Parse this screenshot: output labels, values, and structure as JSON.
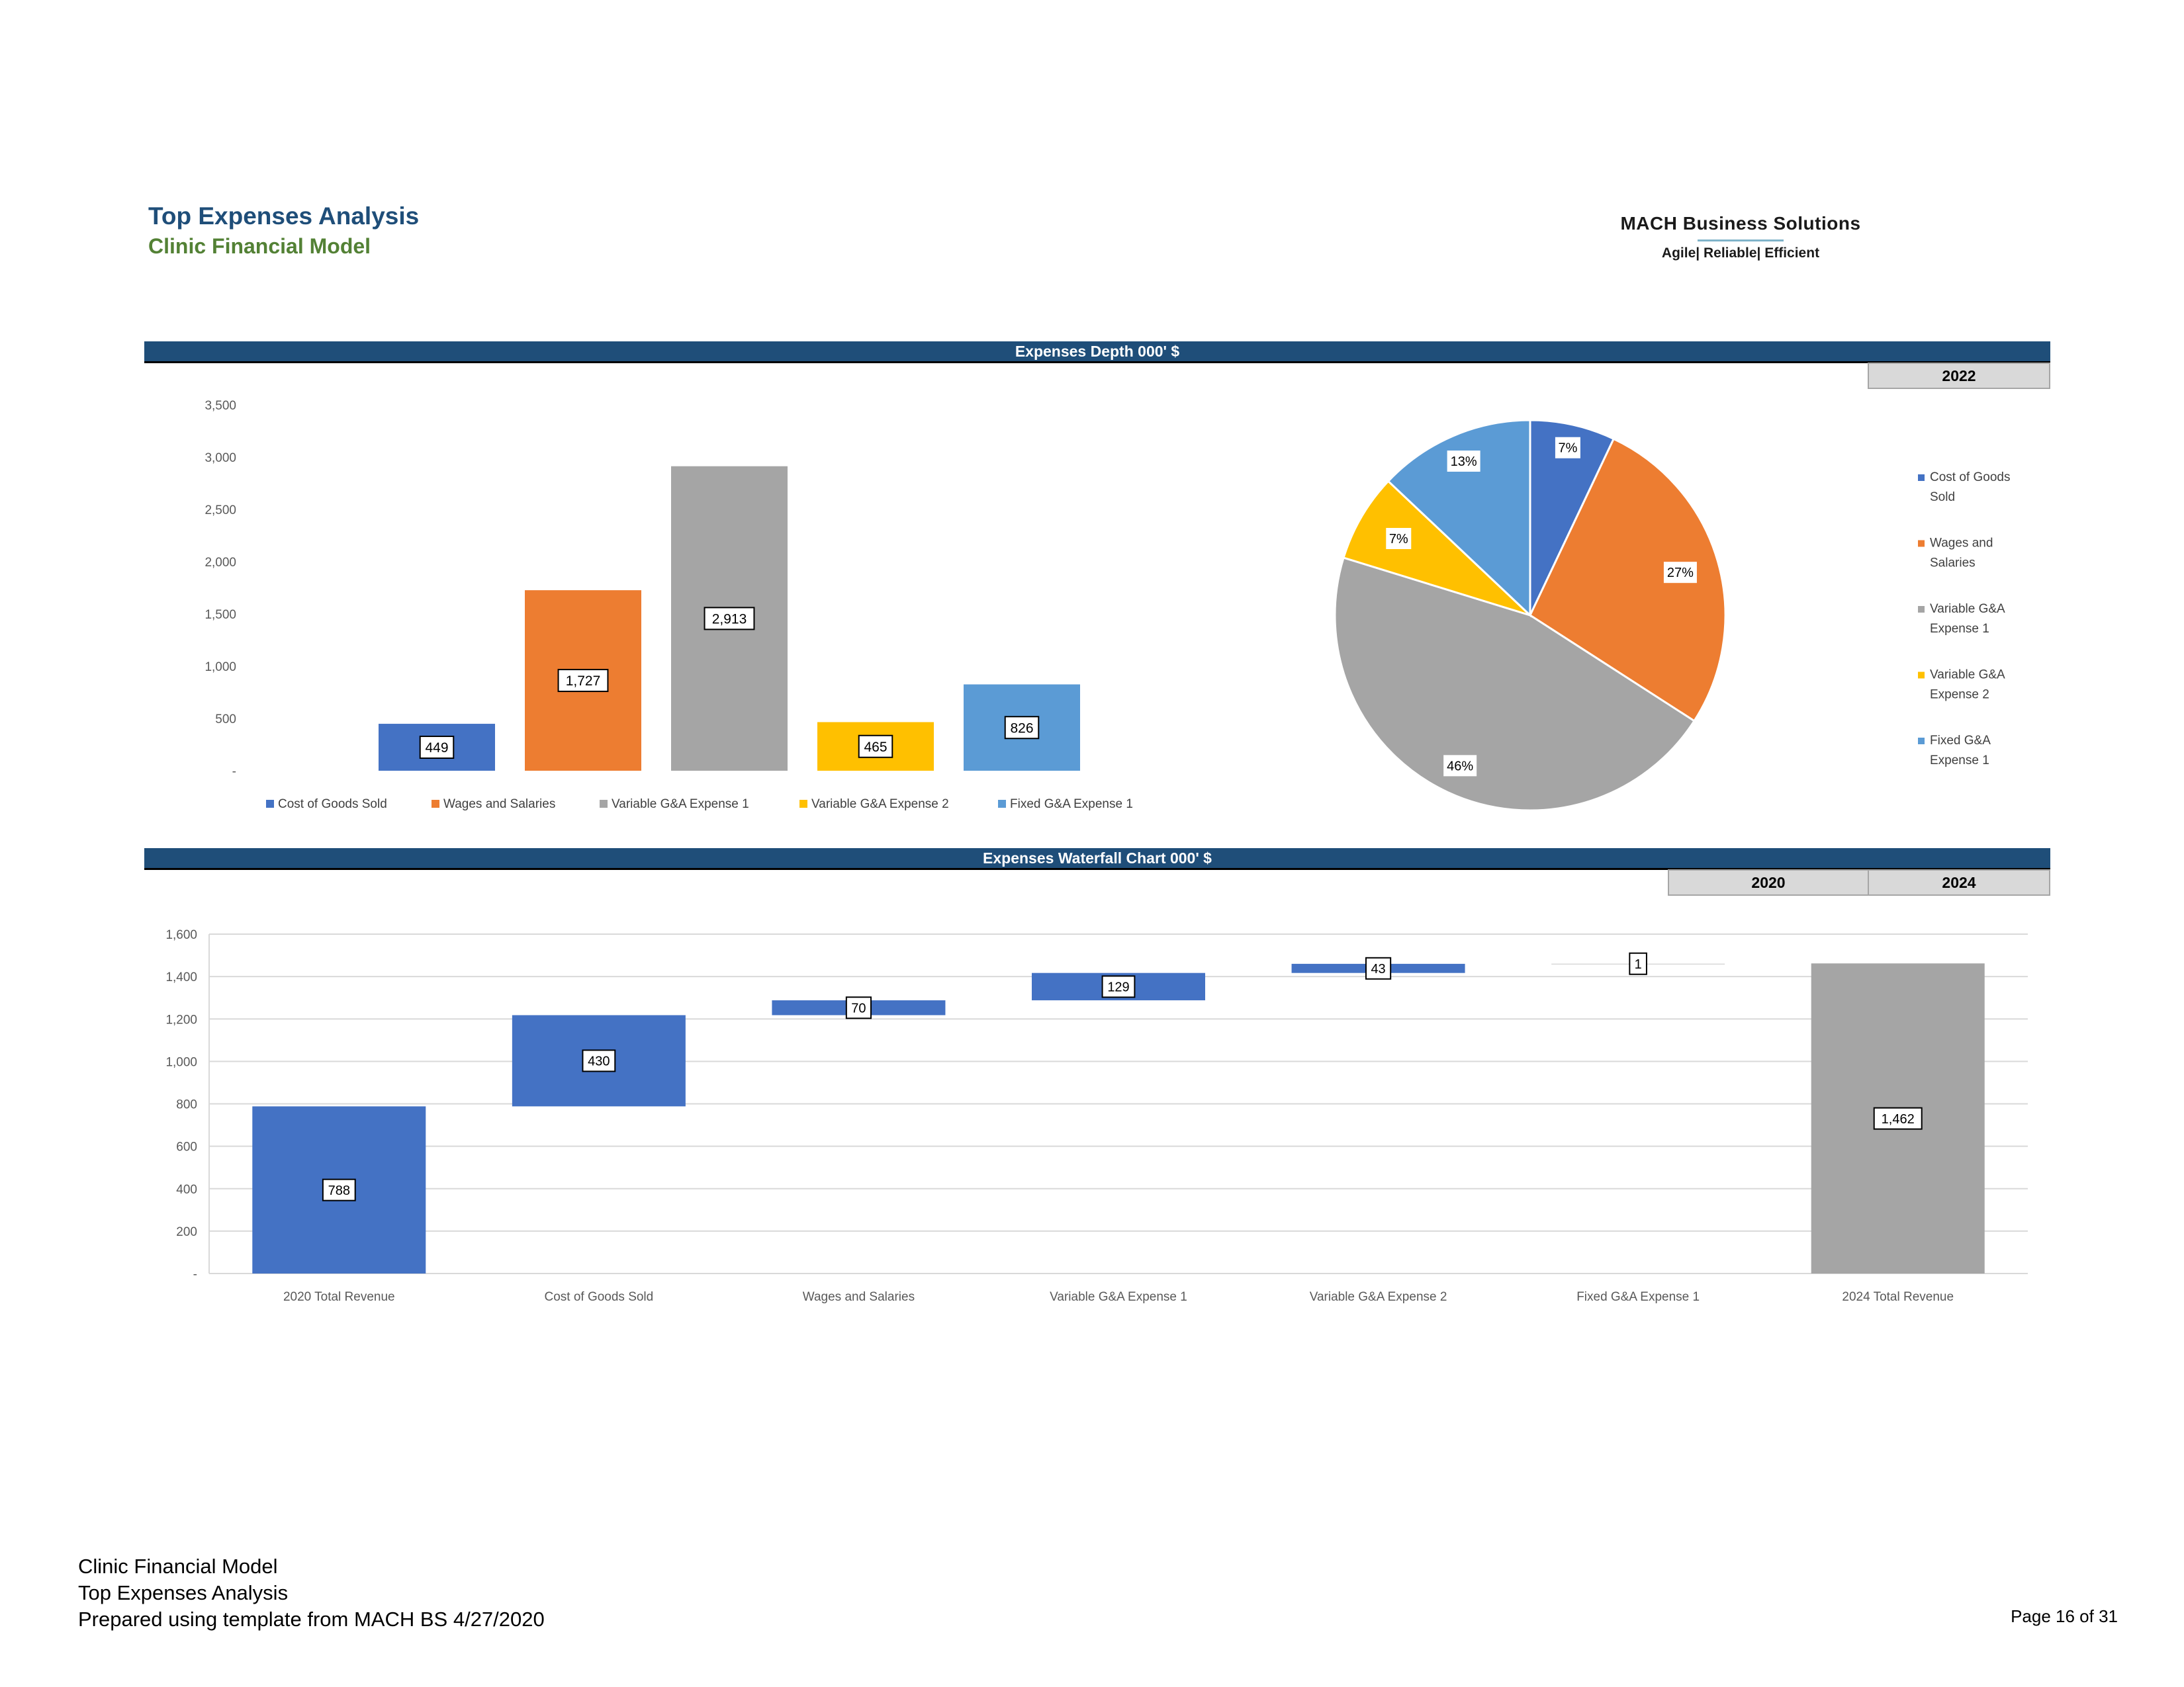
{
  "header": {
    "title": "Top Expenses Analysis",
    "subtitle": "Clinic Financial Model",
    "logo_name": "MACH Business Solutions",
    "logo_tagline": "Agile| Reliable| Efficient"
  },
  "section1": {
    "title": "Expenses Depth 000' $",
    "year": "2022"
  },
  "section2": {
    "title": "Expenses Waterfall Chart 000' $",
    "year_start": "2020",
    "year_end": "2024"
  },
  "colors": {
    "navy": "#1f4e79",
    "green": "#538135",
    "blue": "#4472c4",
    "orange": "#ed7d31",
    "gray": "#a5a5a5",
    "yellow": "#ffc000",
    "lightblue": "#5b9bd5"
  },
  "chart_data": [
    {
      "type": "bar",
      "categories": [
        "Cost of Goods Sold",
        "Wages and Salaries",
        "Variable G&A Expense 1",
        "Variable G&A Expense 2",
        "Fixed G&A Expense 1"
      ],
      "values": [
        449,
        1727,
        2913,
        465,
        826
      ],
      "data_labels": [
        "449",
        "1,727",
        "2,913",
        "465",
        "826"
      ],
      "colors": [
        "#4472c4",
        "#ed7d31",
        "#a5a5a5",
        "#ffc000",
        "#5b9bd5"
      ],
      "ylim": [
        0,
        3500
      ],
      "yticks": [
        0,
        500,
        1000,
        1500,
        2000,
        2500,
        3000,
        3500
      ],
      "ytick_labels": [
        "-",
        "500",
        "1,000",
        "1,500",
        "2,000",
        "2,500",
        "3,000",
        "3,500"
      ],
      "grid": false,
      "legend": "bottom"
    },
    {
      "type": "pie",
      "labels": [
        "Cost of Goods Sold",
        "Wages and Salaries",
        "Variable G&A Expense 1",
        "Variable G&A Expense 2",
        "Fixed G&A Expense 1"
      ],
      "values": [
        449,
        1727,
        2913,
        465,
        826
      ],
      "percent_labels": [
        "7%",
        "27%",
        "46%",
        "7%",
        "13%"
      ],
      "colors": [
        "#4472c4",
        "#ed7d31",
        "#a5a5a5",
        "#ffc000",
        "#5b9bd5"
      ],
      "legend": "right"
    },
    {
      "type": "bar",
      "subtype": "waterfall",
      "categories": [
        "2020 Total Revenue",
        "Cost of Goods Sold",
        "Wages and Salaries",
        "Variable G&A Expense 1",
        "Variable G&A Expense 2",
        "Fixed G&A Expense 1",
        "2024 Total Revenue"
      ],
      "values": [
        788,
        430,
        70,
        129,
        43,
        1,
        1462
      ],
      "data_labels": [
        "788",
        "430",
        "70",
        "129",
        "43",
        "1",
        "1,462"
      ],
      "kinds": [
        "total",
        "step",
        "step",
        "step",
        "step",
        "step",
        "total"
      ],
      "colors": [
        "#4472c4",
        "#4472c4",
        "#4472c4",
        "#4472c4",
        "#4472c4",
        "#4472c4",
        "#a5a5a5"
      ],
      "ylim": [
        0,
        1600
      ],
      "yticks": [
        0,
        200,
        400,
        600,
        800,
        1000,
        1200,
        1400,
        1600
      ],
      "ytick_labels": [
        "-",
        "200",
        "400",
        "600",
        "800",
        "1,000",
        "1,200",
        "1,400",
        "1,600"
      ],
      "grid": true
    }
  ],
  "footer": {
    "line1": "Clinic Financial Model",
    "line2": "Top Expenses Analysis",
    "line3": "Prepared using template from MACH BS 4/27/2020",
    "page": "Page 16 of 31"
  }
}
